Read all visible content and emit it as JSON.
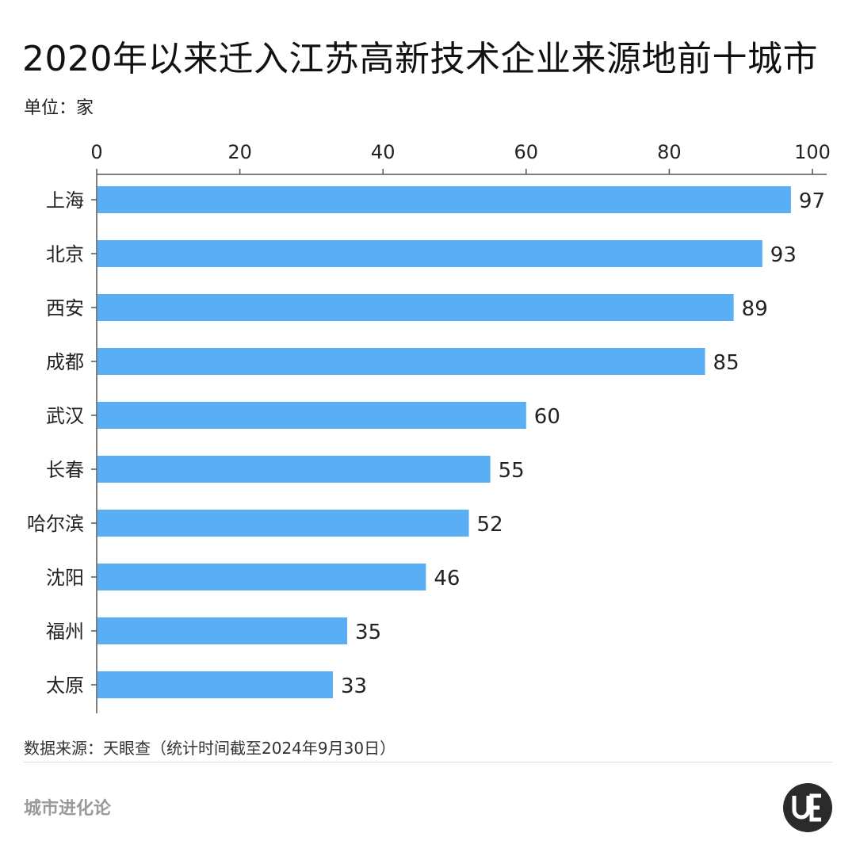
{
  "header": {
    "title": "2020年以来迁入江苏高新技术企业来源地前十城市",
    "unit": "单位：家"
  },
  "footer": {
    "source": "数据来源：天眼查（统计时间截至2024年9月30日）",
    "brand": "城市进化论"
  },
  "colors": {
    "bar": "#5aaef3",
    "axis": "#555555"
  },
  "chart_data": {
    "type": "bar",
    "orientation": "horizontal",
    "categories": [
      "上海",
      "北京",
      "西安",
      "成都",
      "武汉",
      "长春",
      "哈尔滨",
      "沈阳",
      "福州",
      "太原"
    ],
    "values": [
      97,
      93,
      89,
      85,
      60,
      55,
      52,
      46,
      35,
      33
    ],
    "xlim": [
      0,
      100
    ],
    "xticks": [
      0,
      20,
      40,
      60,
      80,
      100
    ],
    "axis_position": "top",
    "grid": false,
    "legend": "none"
  }
}
